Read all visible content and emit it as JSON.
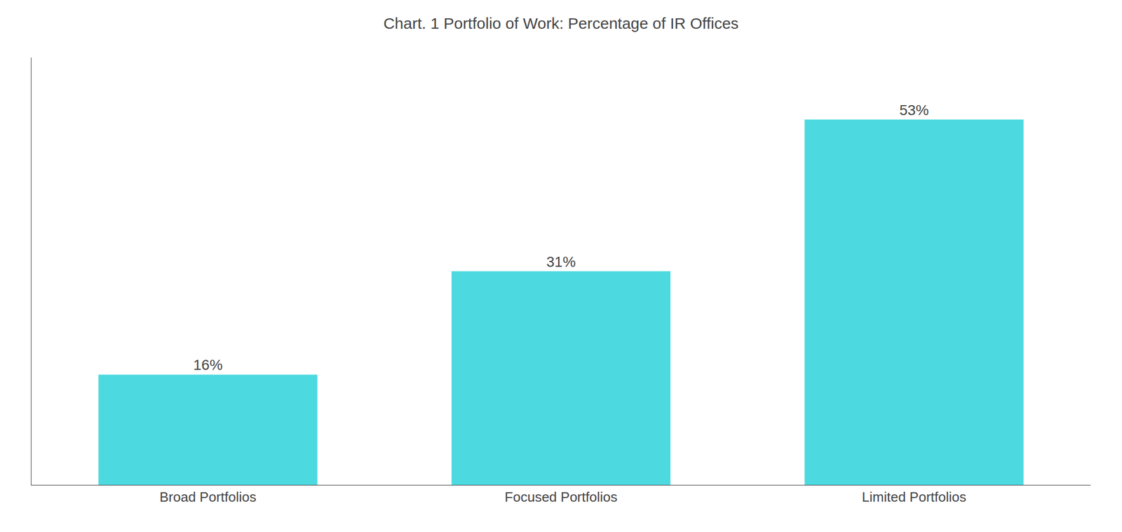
{
  "chart_data": {
    "type": "bar",
    "title": "Chart. 1 Portfolio of Work: Percentage of IR Offices",
    "categories": [
      "Broad Portfolios",
      "Focused Portfolios",
      "Limited Portfolios"
    ],
    "values": [
      16,
      31,
      53
    ],
    "value_labels": [
      "16%",
      "31%",
      "53%"
    ],
    "color": "#4DD9E0",
    "ylim": [
      0,
      62
    ],
    "yticks": [],
    "grid": false,
    "data_labels": true,
    "tick_labels": "x"
  }
}
